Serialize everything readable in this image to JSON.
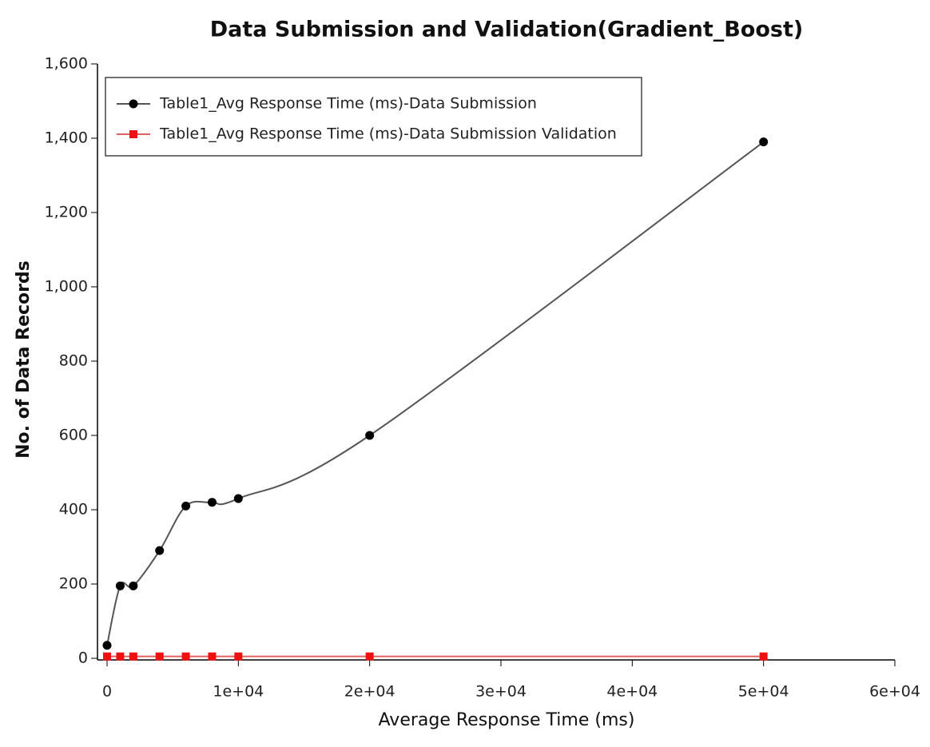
{
  "chart_data": {
    "type": "line",
    "title": "Data Submission and Validation(Gradient_Boost)",
    "x_label": "Average Response Time (ms)",
    "y_label": "No. of Data Records",
    "x": [
      0,
      1000,
      2000,
      4000,
      6000,
      8000,
      10000,
      20000,
      50000
    ],
    "series": [
      {
        "name": "Table1_Avg Response Time (ms)-Data Submission",
        "color": "#000000",
        "line_color": "#555555",
        "marker": "circle",
        "values": [
          35,
          195,
          195,
          290,
          410,
          420,
          430,
          600,
          1390
        ]
      },
      {
        "name": "Table1_Avg Response Time (ms)-Data Submission Validation",
        "color": "#ee1111",
        "line_color": "#e06060",
        "marker": "square",
        "values": [
          5,
          5,
          5,
          5,
          5,
          5,
          5,
          5,
          5
        ]
      }
    ],
    "xlim": [
      0,
      60000
    ],
    "xticks": [
      0,
      {
        "value": 10000,
        "label": "1e+04"
      },
      {
        "value": 20000,
        "label": "2e+04"
      },
      {
        "value": 30000,
        "label": "3e+04"
      },
      {
        "value": 40000,
        "label": "4e+04"
      },
      {
        "value": 50000,
        "label": "5e+04"
      },
      {
        "value": 60000,
        "label": "6e+04"
      }
    ],
    "ylim": [
      0,
      1600
    ],
    "yticks": [
      0,
      200,
      400,
      600,
      800,
      {
        "value": 1000,
        "label": "1,000"
      },
      {
        "value": 1200,
        "label": "1,200"
      },
      {
        "value": 1400,
        "label": "1,400"
      },
      {
        "value": 1600,
        "label": "1,600"
      }
    ],
    "grid": false,
    "legend": "upper-left"
  }
}
